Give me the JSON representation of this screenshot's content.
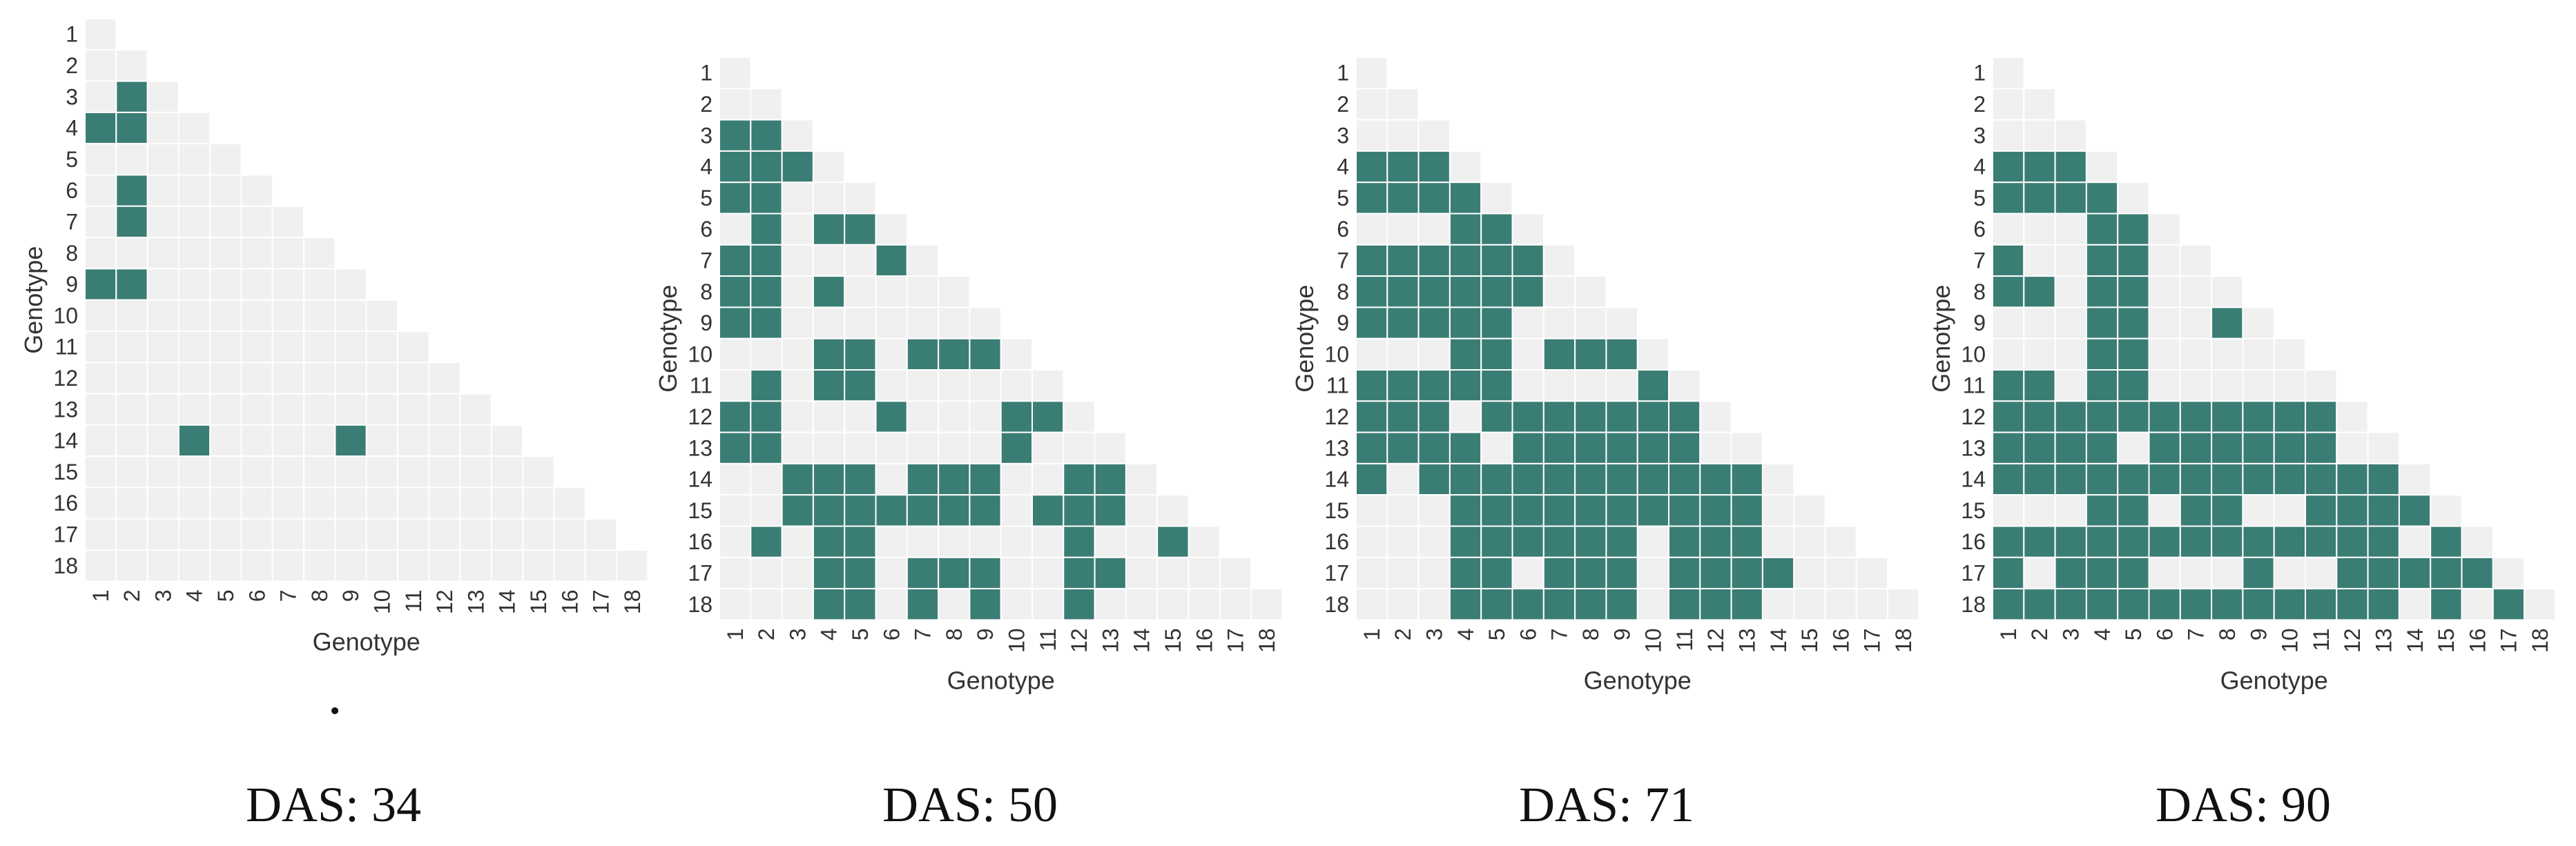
{
  "colors": {
    "significant": "#3a7d74",
    "not_significant": "#f0f0f0",
    "grid": "#ffffff"
  },
  "chart_data": [
    {
      "type": "heatmap",
      "title": "DAS: 34",
      "xlabel": "Genotype",
      "ylabel": "Genotype",
      "labels": [
        "1",
        "2",
        "3",
        "4",
        "5",
        "6",
        "7",
        "8",
        "9",
        "10",
        "11",
        "12",
        "13",
        "14",
        "15",
        "16",
        "17",
        "18"
      ],
      "significant": [
        [
          3,
          2
        ],
        [
          4,
          1
        ],
        [
          4,
          2
        ],
        [
          6,
          2
        ],
        [
          7,
          2
        ],
        [
          9,
          1
        ],
        [
          9,
          2
        ],
        [
          14,
          4
        ],
        [
          14,
          9
        ]
      ]
    },
    {
      "type": "heatmap",
      "title": "DAS: 50",
      "xlabel": "Genotype",
      "ylabel": "Genotype",
      "labels": [
        "1",
        "2",
        "3",
        "4",
        "5",
        "6",
        "7",
        "8",
        "9",
        "10",
        "11",
        "12",
        "13",
        "14",
        "15",
        "16",
        "17",
        "18"
      ],
      "significant": [
        [
          3,
          1
        ],
        [
          3,
          2
        ],
        [
          4,
          1
        ],
        [
          4,
          2
        ],
        [
          4,
          3
        ],
        [
          5,
          1
        ],
        [
          5,
          2
        ],
        [
          6,
          2
        ],
        [
          6,
          4
        ],
        [
          6,
          5
        ],
        [
          7,
          1
        ],
        [
          7,
          2
        ],
        [
          7,
          6
        ],
        [
          8,
          1
        ],
        [
          8,
          2
        ],
        [
          8,
          4
        ],
        [
          9,
          1
        ],
        [
          9,
          2
        ],
        [
          10,
          4
        ],
        [
          10,
          5
        ],
        [
          10,
          7
        ],
        [
          10,
          8
        ],
        [
          10,
          9
        ],
        [
          11,
          2
        ],
        [
          11,
          4
        ],
        [
          11,
          5
        ],
        [
          12,
          1
        ],
        [
          12,
          2
        ],
        [
          12,
          6
        ],
        [
          12,
          10
        ],
        [
          12,
          11
        ],
        [
          13,
          1
        ],
        [
          13,
          2
        ],
        [
          13,
          10
        ],
        [
          14,
          3
        ],
        [
          14,
          4
        ],
        [
          14,
          5
        ],
        [
          14,
          7
        ],
        [
          14,
          8
        ],
        [
          14,
          9
        ],
        [
          14,
          12
        ],
        [
          14,
          13
        ],
        [
          15,
          3
        ],
        [
          15,
          4
        ],
        [
          15,
          5
        ],
        [
          15,
          6
        ],
        [
          15,
          7
        ],
        [
          15,
          8
        ],
        [
          15,
          9
        ],
        [
          15,
          11
        ],
        [
          15,
          12
        ],
        [
          15,
          13
        ],
        [
          16,
          2
        ],
        [
          16,
          4
        ],
        [
          16,
          5
        ],
        [
          16,
          12
        ],
        [
          16,
          15
        ],
        [
          17,
          4
        ],
        [
          17,
          5
        ],
        [
          17,
          7
        ],
        [
          17,
          8
        ],
        [
          17,
          9
        ],
        [
          17,
          12
        ],
        [
          17,
          13
        ],
        [
          18,
          4
        ],
        [
          18,
          5
        ],
        [
          18,
          7
        ],
        [
          18,
          9
        ],
        [
          18,
          12
        ]
      ]
    },
    {
      "type": "heatmap",
      "title": "DAS: 71",
      "xlabel": "Genotype",
      "ylabel": "Genotype",
      "labels": [
        "1",
        "2",
        "3",
        "4",
        "5",
        "6",
        "7",
        "8",
        "9",
        "10",
        "11",
        "12",
        "13",
        "14",
        "15",
        "16",
        "17",
        "18"
      ],
      "significant": [
        [
          4,
          1
        ],
        [
          4,
          2
        ],
        [
          4,
          3
        ],
        [
          5,
          1
        ],
        [
          5,
          2
        ],
        [
          5,
          3
        ],
        [
          5,
          4
        ],
        [
          6,
          4
        ],
        [
          6,
          5
        ],
        [
          7,
          1
        ],
        [
          7,
          2
        ],
        [
          7,
          3
        ],
        [
          7,
          4
        ],
        [
          7,
          5
        ],
        [
          7,
          6
        ],
        [
          8,
          1
        ],
        [
          8,
          2
        ],
        [
          8,
          3
        ],
        [
          8,
          4
        ],
        [
          8,
          5
        ],
        [
          8,
          6
        ],
        [
          9,
          1
        ],
        [
          9,
          2
        ],
        [
          9,
          3
        ],
        [
          9,
          4
        ],
        [
          9,
          5
        ],
        [
          10,
          4
        ],
        [
          10,
          5
        ],
        [
          10,
          7
        ],
        [
          10,
          8
        ],
        [
          10,
          9
        ],
        [
          11,
          1
        ],
        [
          11,
          2
        ],
        [
          11,
          3
        ],
        [
          11,
          4
        ],
        [
          11,
          5
        ],
        [
          11,
          10
        ],
        [
          12,
          1
        ],
        [
          12,
          2
        ],
        [
          12,
          3
        ],
        [
          12,
          5
        ],
        [
          12,
          6
        ],
        [
          12,
          7
        ],
        [
          12,
          8
        ],
        [
          12,
          9
        ],
        [
          12,
          10
        ],
        [
          12,
          11
        ],
        [
          13,
          1
        ],
        [
          13,
          2
        ],
        [
          13,
          3
        ],
        [
          13,
          4
        ],
        [
          13,
          6
        ],
        [
          13,
          7
        ],
        [
          13,
          8
        ],
        [
          13,
          9
        ],
        [
          13,
          10
        ],
        [
          13,
          11
        ],
        [
          14,
          1
        ],
        [
          14,
          3
        ],
        [
          14,
          4
        ],
        [
          14,
          5
        ],
        [
          14,
          6
        ],
        [
          14,
          7
        ],
        [
          14,
          8
        ],
        [
          14,
          9
        ],
        [
          14,
          10
        ],
        [
          14,
          11
        ],
        [
          14,
          12
        ],
        [
          14,
          13
        ],
        [
          15,
          4
        ],
        [
          15,
          5
        ],
        [
          15,
          6
        ],
        [
          15,
          7
        ],
        [
          15,
          8
        ],
        [
          15,
          9
        ],
        [
          15,
          10
        ],
        [
          15,
          11
        ],
        [
          15,
          12
        ],
        [
          15,
          13
        ],
        [
          16,
          4
        ],
        [
          16,
          5
        ],
        [
          16,
          6
        ],
        [
          16,
          7
        ],
        [
          16,
          8
        ],
        [
          16,
          9
        ],
        [
          16,
          11
        ],
        [
          16,
          12
        ],
        [
          16,
          13
        ],
        [
          17,
          4
        ],
        [
          17,
          5
        ],
        [
          17,
          7
        ],
        [
          17,
          8
        ],
        [
          17,
          9
        ],
        [
          17,
          11
        ],
        [
          17,
          12
        ],
        [
          17,
          13
        ],
        [
          17,
          14
        ],
        [
          18,
          4
        ],
        [
          18,
          5
        ],
        [
          18,
          6
        ],
        [
          18,
          7
        ],
        [
          18,
          8
        ],
        [
          18,
          9
        ],
        [
          18,
          11
        ],
        [
          18,
          12
        ],
        [
          18,
          13
        ]
      ]
    },
    {
      "type": "heatmap",
      "title": "DAS: 90",
      "xlabel": "Genotype",
      "ylabel": "Genotype",
      "labels": [
        "1",
        "2",
        "3",
        "4",
        "5",
        "6",
        "7",
        "8",
        "9",
        "10",
        "11",
        "12",
        "13",
        "14",
        "15",
        "16",
        "17",
        "18"
      ],
      "significant": [
        [
          4,
          1
        ],
        [
          4,
          2
        ],
        [
          4,
          3
        ],
        [
          5,
          1
        ],
        [
          5,
          2
        ],
        [
          5,
          3
        ],
        [
          5,
          4
        ],
        [
          6,
          4
        ],
        [
          6,
          5
        ],
        [
          7,
          1
        ],
        [
          7,
          4
        ],
        [
          7,
          5
        ],
        [
          8,
          1
        ],
        [
          8,
          2
        ],
        [
          8,
          4
        ],
        [
          8,
          5
        ],
        [
          9,
          4
        ],
        [
          9,
          5
        ],
        [
          9,
          8
        ],
        [
          10,
          4
        ],
        [
          10,
          5
        ],
        [
          11,
          1
        ],
        [
          11,
          2
        ],
        [
          11,
          4
        ],
        [
          11,
          5
        ],
        [
          12,
          1
        ],
        [
          12,
          2
        ],
        [
          12,
          3
        ],
        [
          12,
          4
        ],
        [
          12,
          5
        ],
        [
          12,
          6
        ],
        [
          12,
          7
        ],
        [
          12,
          8
        ],
        [
          12,
          9
        ],
        [
          12,
          10
        ],
        [
          12,
          11
        ],
        [
          13,
          1
        ],
        [
          13,
          2
        ],
        [
          13,
          3
        ],
        [
          13,
          4
        ],
        [
          13,
          6
        ],
        [
          13,
          7
        ],
        [
          13,
          8
        ],
        [
          13,
          9
        ],
        [
          13,
          10
        ],
        [
          13,
          11
        ],
        [
          14,
          1
        ],
        [
          14,
          2
        ],
        [
          14,
          3
        ],
        [
          14,
          4
        ],
        [
          14,
          5
        ],
        [
          14,
          6
        ],
        [
          14,
          7
        ],
        [
          14,
          8
        ],
        [
          14,
          9
        ],
        [
          14,
          10
        ],
        [
          14,
          11
        ],
        [
          14,
          12
        ],
        [
          14,
          13
        ],
        [
          15,
          4
        ],
        [
          15,
          5
        ],
        [
          15,
          7
        ],
        [
          15,
          8
        ],
        [
          15,
          11
        ],
        [
          15,
          12
        ],
        [
          15,
          13
        ],
        [
          15,
          14
        ],
        [
          16,
          1
        ],
        [
          16,
          2
        ],
        [
          16,
          3
        ],
        [
          16,
          4
        ],
        [
          16,
          5
        ],
        [
          16,
          6
        ],
        [
          16,
          7
        ],
        [
          16,
          8
        ],
        [
          16,
          9
        ],
        [
          16,
          10
        ],
        [
          16,
          11
        ],
        [
          16,
          12
        ],
        [
          16,
          13
        ],
        [
          16,
          15
        ],
        [
          17,
          1
        ],
        [
          17,
          3
        ],
        [
          17,
          4
        ],
        [
          17,
          5
        ],
        [
          17,
          9
        ],
        [
          17,
          12
        ],
        [
          17,
          13
        ],
        [
          17,
          14
        ],
        [
          17,
          15
        ],
        [
          17,
          16
        ],
        [
          18,
          1
        ],
        [
          18,
          2
        ],
        [
          18,
          3
        ],
        [
          18,
          4
        ],
        [
          18,
          5
        ],
        [
          18,
          6
        ],
        [
          18,
          7
        ],
        [
          18,
          8
        ],
        [
          18,
          9
        ],
        [
          18,
          10
        ],
        [
          18,
          11
        ],
        [
          18,
          12
        ],
        [
          18,
          13
        ],
        [
          18,
          15
        ],
        [
          18,
          17
        ]
      ]
    }
  ]
}
